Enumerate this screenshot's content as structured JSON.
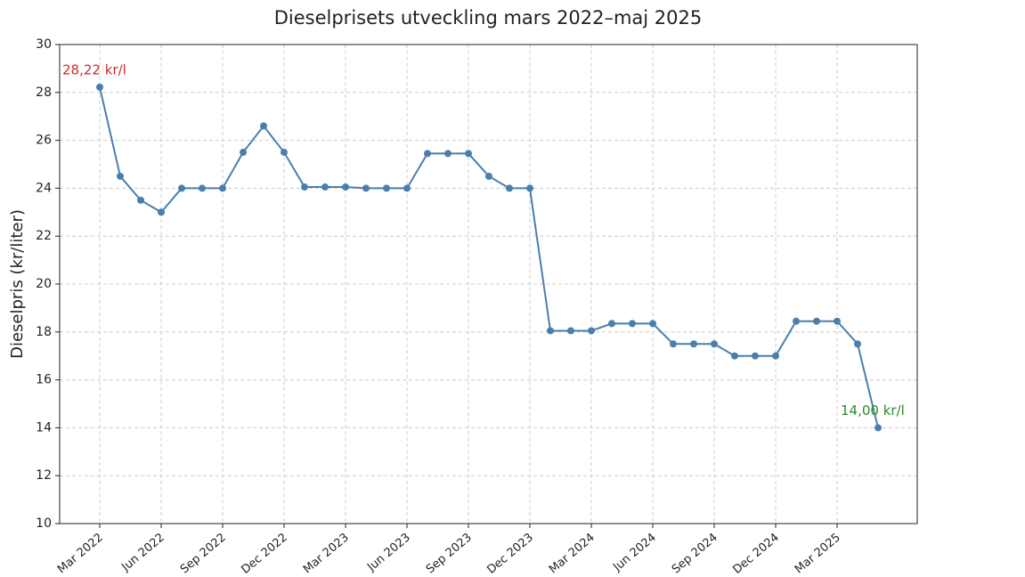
{
  "chart_data": {
    "type": "line",
    "title": "Dieselprisets utveckling mars 2022–maj 2025",
    "y_label": "Dieselpris (kr/liter)",
    "categories": [
      "Mar 2022",
      null,
      null,
      "Jun 2022",
      null,
      null,
      "Sep 2022",
      null,
      null,
      "Dec 2022",
      null,
      null,
      "Mar 2023",
      null,
      null,
      "Jun 2023",
      null,
      null,
      "Sep 2023",
      null,
      null,
      "Dec 2023",
      null,
      null,
      "Mar 2024",
      null,
      null,
      "Jun 2024",
      null,
      null,
      "Sep 2024",
      null,
      null,
      "Dec 2024",
      null,
      null,
      "Mar 2025",
      null,
      null
    ],
    "series": [
      {
        "name": "Dieselpris",
        "color": "#4a7fad",
        "values": [
          28.22,
          24.5,
          23.5,
          23.0,
          24.0,
          24.0,
          24.0,
          25.5,
          26.6,
          25.5,
          24.05,
          24.05,
          24.05,
          24.0,
          24.0,
          24.0,
          25.45,
          25.45,
          25.45,
          24.5,
          24.0,
          24.0,
          18.05,
          18.05,
          18.05,
          18.35,
          18.35,
          18.35,
          17.5,
          17.5,
          17.5,
          17.0,
          17.0,
          17.0,
          18.45,
          18.45,
          18.45,
          17.5,
          14.0
        ]
      }
    ],
    "annotations": [
      {
        "text": "28,22 kr/l",
        "index": 0,
        "value": 28.22,
        "color": "#d62728"
      },
      {
        "text": "14,00 kr/l",
        "index": 38,
        "value": 14.0,
        "color": "#2a8a2a"
      }
    ],
    "ylim": [
      10,
      30
    ],
    "yticks": [
      10,
      12,
      14,
      16,
      18,
      20,
      22,
      24,
      26,
      28,
      30
    ],
    "grid": true
  }
}
